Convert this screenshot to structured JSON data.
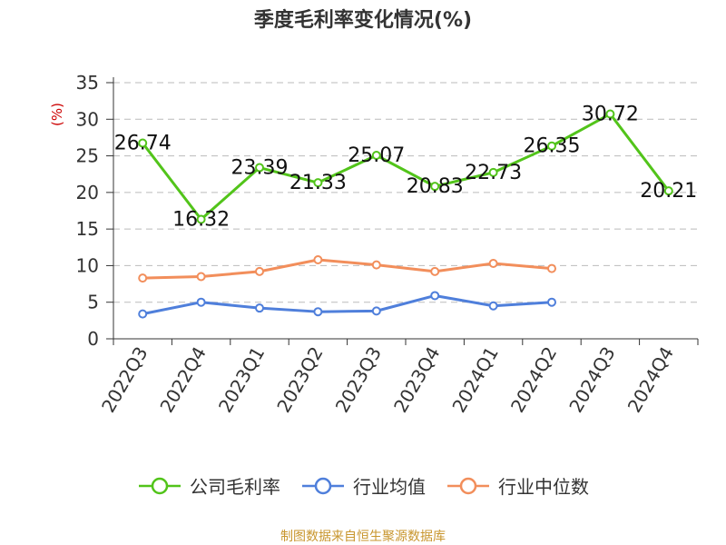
{
  "chart_data": {
    "type": "line",
    "title": "季度毛利率变化情况(%)",
    "ylabel": "(%)",
    "xlabel": "",
    "ylim": [
      0,
      35
    ],
    "yticks": [
      0,
      5,
      10,
      15,
      20,
      25,
      30,
      35
    ],
    "grid": true,
    "legend_position": "bottom",
    "categories": [
      "2022Q3",
      "2022Q4",
      "2023Q1",
      "2023Q2",
      "2023Q3",
      "2023Q4",
      "2024Q1",
      "2024Q2",
      "2024Q3",
      "2024Q4"
    ],
    "series": [
      {
        "name": "公司毛利率",
        "color": "#52c41a",
        "values": [
          26.74,
          16.32,
          23.39,
          21.33,
          25.07,
          20.83,
          22.73,
          26.35,
          30.72,
          20.21
        ],
        "labels": [
          "26.74",
          "16.32",
          "23.39",
          "21.33",
          "25.07",
          "20.83",
          "22.73",
          "26.35",
          "30.72",
          "20.21"
        ]
      },
      {
        "name": "行业均值",
        "color": "#4f7fdb",
        "values": [
          3.4,
          5.0,
          4.2,
          3.7,
          3.8,
          5.9,
          4.5,
          5.0,
          null,
          null
        ]
      },
      {
        "name": "行业中位数",
        "color": "#f28e5b",
        "values": [
          8.3,
          8.5,
          9.2,
          10.8,
          10.1,
          9.2,
          10.3,
          9.6,
          null,
          null
        ]
      }
    ]
  },
  "source": "制图数据来自恒生聚源数据库"
}
